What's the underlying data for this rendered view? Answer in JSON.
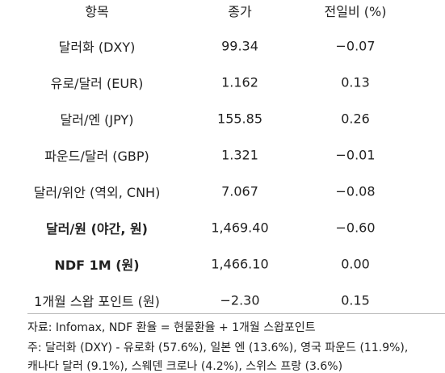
{
  "table": {
    "header": [
      "항목",
      "종가",
      "전일비 (%)"
    ],
    "rows": [
      [
        "달러화 (DXY)",
        "99.34",
        "−0.07"
      ],
      [
        "유로/달러 (EUR)",
        "1.162",
        "0.13"
      ],
      [
        "달러/엔 (JPY)",
        "155.85",
        "0.26"
      ],
      [
        "파운드/달러 (GBP)",
        "1.321",
        "−0.01"
      ],
      [
        "달러/위안 (역외, CNH)",
        "7.067",
        "−0.08"
      ],
      [
        "달러/원 (야간, 원)",
        "1,469.40",
        "−0.60"
      ],
      [
        "NDF 1M (원)",
        "1,466.10",
        "0.00"
      ],
      [
        "1개월 스왑 포인트 (원)",
        "−2.30",
        "0.15"
      ]
    ]
  },
  "notes": [
    "자료: Infomax, NDF 환율 = 현물환율 + 1개월 스왑포인트",
    "주: 달러화 (DXY) - 유로화 (57.6%), 일본 엔 (13.6%), 영국 파운드 (11.9%),",
    "캐나다 달러 (9.1%), 스웨덴 크로나 (4.2%), 스위스 프랑 (3.6%)"
  ]
}
